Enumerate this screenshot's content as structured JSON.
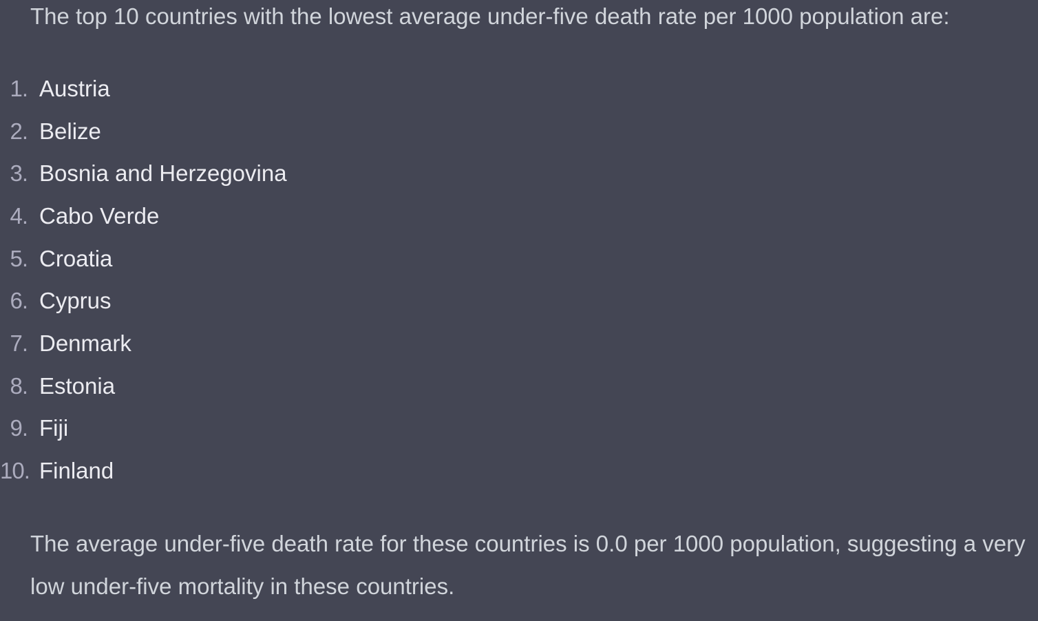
{
  "message": {
    "intro": "The top 10 countries with the lowest average under-five death rate per 1000 population are:",
    "list": [
      {
        "num": "1.",
        "label": "Austria"
      },
      {
        "num": "2.",
        "label": "Belize"
      },
      {
        "num": "3.",
        "label": "Bosnia and Herzegovina"
      },
      {
        "num": "4.",
        "label": "Cabo Verde"
      },
      {
        "num": "5.",
        "label": "Croatia"
      },
      {
        "num": "6.",
        "label": "Cyprus"
      },
      {
        "num": "7.",
        "label": "Denmark"
      },
      {
        "num": "8.",
        "label": "Estonia"
      },
      {
        "num": "9.",
        "label": "Fiji"
      },
      {
        "num": "10.",
        "label": "Finland"
      }
    ],
    "summary": "The average under-five death rate for these countries is 0.0 per 1000 population, suggesting a very low under-five mortality in these countries."
  },
  "colors": {
    "background": "#444654",
    "text": "#ececf1",
    "muted_text": "#d1d5db",
    "list_number": "#acacbe"
  }
}
